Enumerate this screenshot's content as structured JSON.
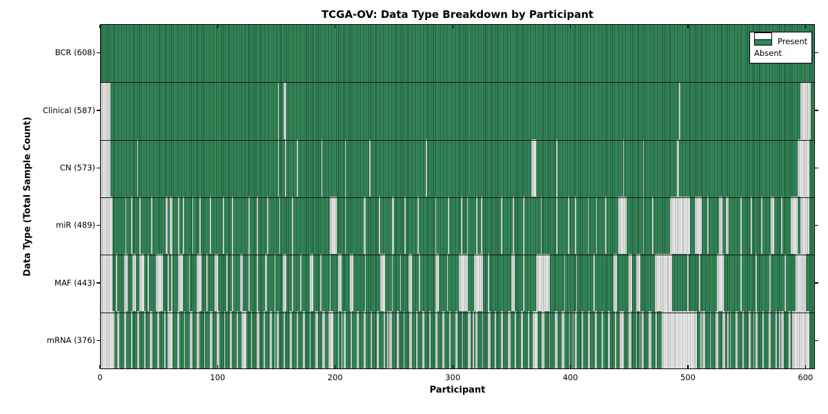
{
  "chart_data": {
    "type": "heatmap",
    "title": "TCGA-OV: Data Type Breakdown by Participant",
    "xlabel": "Participant",
    "ylabel": "Data Type (Total Sample Count)",
    "n_participants": 608,
    "x_ticks": [
      0,
      100,
      200,
      300,
      400,
      500,
      600
    ],
    "legend": {
      "present": "Present",
      "absent": "Absent"
    },
    "legend_position": "upper right",
    "grid": false,
    "colors": {
      "present": "#2e8b57",
      "absent": "#ececec"
    },
    "rows": [
      {
        "data_type": "BCR",
        "label": "BCR (608)",
        "present_count": 608,
        "absent_ranges": []
      },
      {
        "data_type": "Clinical",
        "label": "Clinical (587)",
        "present_count": 587,
        "absent_ranges": [
          [
            0,
            8
          ],
          [
            151,
            152
          ],
          [
            156,
            158
          ],
          [
            493,
            494
          ],
          [
            596,
            605
          ]
        ]
      },
      {
        "data_type": "CN",
        "label": "CN (573)",
        "present_count": 573,
        "absent_ranges": [
          [
            0,
            8
          ],
          [
            31,
            32
          ],
          [
            151,
            152
          ],
          [
            157,
            158
          ],
          [
            167,
            168
          ],
          [
            188,
            189
          ],
          [
            208,
            209
          ],
          [
            229,
            230
          ],
          [
            277,
            278
          ],
          [
            367,
            371
          ],
          [
            388,
            389
          ],
          [
            445,
            446
          ],
          [
            462,
            463
          ],
          [
            491,
            493
          ],
          [
            594,
            604
          ]
        ]
      },
      {
        "data_type": "miR",
        "label": "miR (489)",
        "present_count": 489,
        "absent_ranges": [
          [
            0,
            10
          ],
          [
            21,
            22
          ],
          [
            26,
            27
          ],
          [
            33,
            34
          ],
          [
            43,
            44
          ],
          [
            55,
            57
          ],
          [
            59,
            61
          ],
          [
            66,
            67
          ],
          [
            70,
            71
          ],
          [
            78,
            79
          ],
          [
            84,
            85
          ],
          [
            93,
            94
          ],
          [
            104,
            105
          ],
          [
            112,
            113
          ],
          [
            126,
            127
          ],
          [
            133,
            134
          ],
          [
            142,
            143
          ],
          [
            152,
            153
          ],
          [
            163,
            164
          ],
          [
            195,
            201
          ],
          [
            208,
            209
          ],
          [
            224,
            226
          ],
          [
            237,
            238
          ],
          [
            248,
            250
          ],
          [
            259,
            260
          ],
          [
            270,
            271
          ],
          [
            285,
            286
          ],
          [
            296,
            297
          ],
          [
            307,
            308
          ],
          [
            312,
            313
          ],
          [
            320,
            321
          ],
          [
            324,
            325
          ],
          [
            341,
            342
          ],
          [
            351,
            352
          ],
          [
            360,
            361
          ],
          [
            375,
            376
          ],
          [
            388,
            389
          ],
          [
            398,
            399
          ],
          [
            404,
            405
          ],
          [
            415,
            416
          ],
          [
            422,
            423
          ],
          [
            430,
            431
          ],
          [
            441,
            448
          ],
          [
            462,
            463
          ],
          [
            470,
            471
          ],
          [
            485,
            502
          ],
          [
            506,
            512
          ],
          [
            517,
            518
          ],
          [
            527,
            530
          ],
          [
            533,
            535
          ],
          [
            545,
            546
          ],
          [
            554,
            555
          ],
          [
            563,
            564
          ],
          [
            571,
            574
          ],
          [
            580,
            581
          ],
          [
            588,
            594
          ],
          [
            596,
            604
          ]
        ]
      },
      {
        "data_type": "MAF",
        "label": "MAF (443)",
        "present_count": 443,
        "absent_ranges": [
          [
            0,
            10
          ],
          [
            13,
            14
          ],
          [
            20,
            23
          ],
          [
            27,
            30
          ],
          [
            33,
            37
          ],
          [
            40,
            41
          ],
          [
            47,
            53
          ],
          [
            57,
            58
          ],
          [
            60,
            61
          ],
          [
            66,
            70
          ],
          [
            75,
            76
          ],
          [
            82,
            86
          ],
          [
            90,
            91
          ],
          [
            97,
            100
          ],
          [
            107,
            108
          ],
          [
            112,
            113
          ],
          [
            119,
            121
          ],
          [
            126,
            127
          ],
          [
            133,
            134
          ],
          [
            140,
            142
          ],
          [
            148,
            149
          ],
          [
            155,
            158
          ],
          [
            163,
            164
          ],
          [
            170,
            171
          ],
          [
            178,
            181
          ],
          [
            187,
            188
          ],
          [
            195,
            196
          ],
          [
            202,
            205
          ],
          [
            212,
            215
          ],
          [
            225,
            226
          ],
          [
            238,
            242
          ],
          [
            248,
            249
          ],
          [
            255,
            256
          ],
          [
            262,
            265
          ],
          [
            271,
            272
          ],
          [
            285,
            288
          ],
          [
            295,
            296
          ],
          [
            305,
            313
          ],
          [
            318,
            326
          ],
          [
            330,
            331
          ],
          [
            350,
            353
          ],
          [
            360,
            361
          ],
          [
            371,
            383
          ],
          [
            395,
            396
          ],
          [
            405,
            406
          ],
          [
            420,
            421
          ],
          [
            437,
            440
          ],
          [
            450,
            453
          ],
          [
            456,
            460
          ],
          [
            472,
            487
          ],
          [
            500,
            501
          ],
          [
            510,
            511
          ],
          [
            525,
            531
          ],
          [
            545,
            546
          ],
          [
            558,
            559
          ],
          [
            570,
            571
          ],
          [
            583,
            584
          ],
          [
            592,
            601
          ]
        ]
      },
      {
        "data_type": "mRNA",
        "label": "mRNA (376)",
        "present_count": 376,
        "absent_ranges": [
          [
            0,
            12
          ],
          [
            14,
            16
          ],
          [
            20,
            22
          ],
          [
            26,
            27
          ],
          [
            31,
            33
          ],
          [
            37,
            38
          ],
          [
            42,
            44
          ],
          [
            48,
            50
          ],
          [
            54,
            55
          ],
          [
            57,
            61
          ],
          [
            65,
            67
          ],
          [
            71,
            72
          ],
          [
            76,
            78
          ],
          [
            82,
            84
          ],
          [
            88,
            89
          ],
          [
            93,
            95
          ],
          [
            99,
            101
          ],
          [
            105,
            106
          ],
          [
            110,
            112
          ],
          [
            116,
            117
          ],
          [
            120,
            124
          ],
          [
            128,
            129
          ],
          [
            133,
            135
          ],
          [
            139,
            140
          ],
          [
            144,
            146
          ],
          [
            148,
            149
          ],
          [
            150,
            152
          ],
          [
            156,
            157
          ],
          [
            161,
            163
          ],
          [
            167,
            168
          ],
          [
            172,
            174
          ],
          [
            178,
            179
          ],
          [
            183,
            185
          ],
          [
            189,
            191
          ],
          [
            194,
            198
          ],
          [
            202,
            203
          ],
          [
            205,
            206
          ],
          [
            207,
            209
          ],
          [
            213,
            214
          ],
          [
            218,
            220
          ],
          [
            224,
            226
          ],
          [
            230,
            231
          ],
          [
            235,
            237
          ],
          [
            241,
            242
          ],
          [
            244,
            245
          ],
          [
            246,
            248
          ],
          [
            252,
            254
          ],
          [
            258,
            259
          ],
          [
            263,
            265
          ],
          [
            269,
            270
          ],
          [
            274,
            276
          ],
          [
            280,
            281
          ],
          [
            285,
            287
          ],
          [
            291,
            293
          ],
          [
            297,
            298
          ],
          [
            302,
            304
          ],
          [
            308,
            309
          ],
          [
            313,
            315
          ],
          [
            317,
            318
          ],
          [
            319,
            321
          ],
          [
            325,
            326
          ],
          [
            330,
            332
          ],
          [
            336,
            337
          ],
          [
            341,
            343
          ],
          [
            347,
            349
          ],
          [
            353,
            354
          ],
          [
            358,
            360
          ],
          [
            364,
            365
          ],
          [
            368,
            372
          ],
          [
            376,
            378
          ],
          [
            382,
            383
          ],
          [
            387,
            389
          ],
          [
            393,
            395
          ],
          [
            399,
            400
          ],
          [
            402,
            403
          ],
          [
            404,
            406
          ],
          [
            410,
            411
          ],
          [
            415,
            417
          ],
          [
            421,
            423
          ],
          [
            427,
            428
          ],
          [
            432,
            434
          ],
          [
            438,
            439
          ],
          [
            442,
            446
          ],
          [
            450,
            452
          ],
          [
            456,
            457
          ],
          [
            459,
            460
          ],
          [
            461,
            463
          ],
          [
            467,
            469
          ],
          [
            473,
            474
          ],
          [
            478,
            508
          ],
          [
            511,
            512
          ],
          [
            513,
            515
          ],
          [
            519,
            520
          ],
          [
            524,
            526
          ],
          [
            530,
            532
          ],
          [
            534,
            535
          ],
          [
            536,
            537
          ],
          [
            541,
            543
          ],
          [
            547,
            548
          ],
          [
            552,
            554
          ],
          [
            556,
            557
          ],
          [
            558,
            560
          ],
          [
            564,
            565
          ],
          [
            569,
            571
          ],
          [
            575,
            576
          ],
          [
            578,
            579
          ],
          [
            580,
            582
          ],
          [
            586,
            588
          ],
          [
            589,
            604
          ]
        ]
      }
    ]
  }
}
